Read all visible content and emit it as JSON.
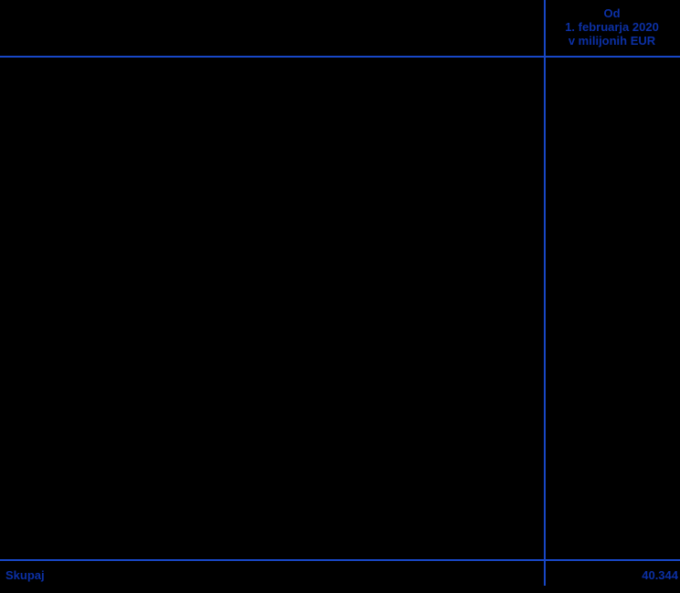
{
  "table": {
    "value_column_header": {
      "lines": [
        "Od",
        "1. februarja 2020",
        "v milijonih EUR"
      ]
    },
    "body": {
      "rows": []
    },
    "total_row": {
      "label": "Skupaj",
      "value": "40.344"
    }
  },
  "colors": {
    "background": "#000000",
    "rule": "#1847c6",
    "text": "#0c30a4"
  }
}
